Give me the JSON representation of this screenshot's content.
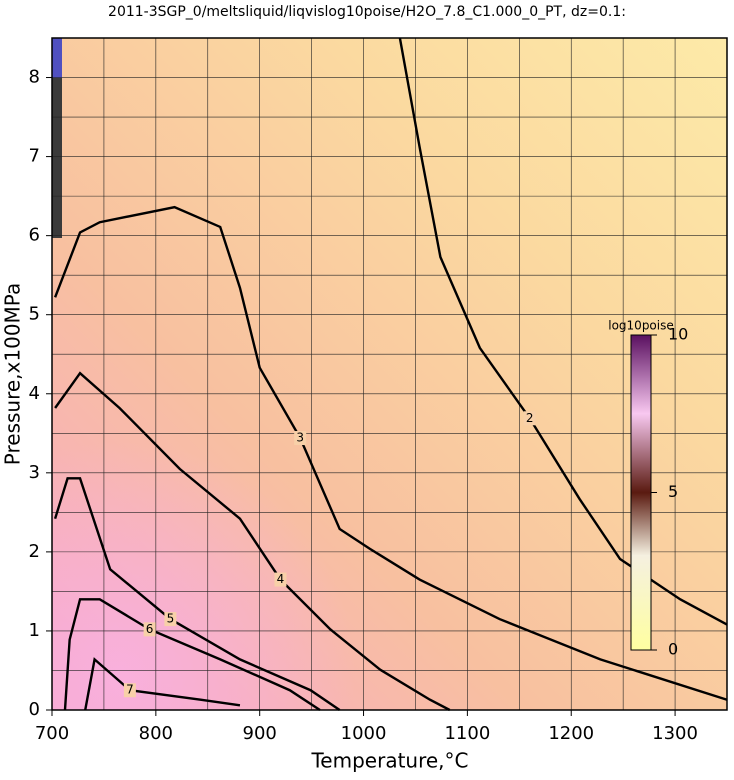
{
  "chart_data": {
    "type": "contour",
    "title": "2011-3SGP_0/meltsliquid/liqvislog10poise/H2O_7.8_C1.000_0_PT, dz=0.1:",
    "xlabel": "Temperature,°C",
    "ylabel": "Pressure,x100MPa",
    "xlim": [
      700,
      1350
    ],
    "ylim": [
      0,
      8.5
    ],
    "xticks": [
      700,
      800,
      900,
      1000,
      1100,
      1200,
      1300
    ],
    "yticks": [
      0,
      1,
      2,
      3,
      4,
      5,
      6,
      7,
      8
    ],
    "xgrid": [
      750,
      850,
      950,
      1050,
      1150,
      1250,
      1350
    ],
    "ygrid": [
      0.5,
      1.5,
      2.5,
      3.5,
      4.5,
      5.5,
      6.5,
      7.5,
      8.5
    ],
    "grid": true,
    "contours": [
      {
        "level": 2,
        "x": [
          1035,
          1054,
          1074,
          1112,
          1160,
          1208,
          1247,
          1305,
          1350
        ],
        "y": [
          8.5,
          7.12,
          5.73,
          4.58,
          3.69,
          2.67,
          1.91,
          1.4,
          1.08
        ]
      },
      {
        "level": 3,
        "x": [
          703,
          727,
          746,
          818,
          862,
          881,
          900,
          939,
          977,
          1006,
          1054,
          1131,
          1228,
          1350
        ],
        "y": [
          5.22,
          6.04,
          6.17,
          6.36,
          6.11,
          5.34,
          4.33,
          3.44,
          2.29,
          2.04,
          1.65,
          1.15,
          0.64,
          0.13
        ]
      },
      {
        "level": 4,
        "x": [
          703,
          727,
          765,
          823,
          881,
          920,
          968,
          1016,
          1064,
          1083
        ],
        "y": [
          3.82,
          4.26,
          3.82,
          3.05,
          2.42,
          1.65,
          1.02,
          0.51,
          0.13,
          0
        ]
      },
      {
        "level": 5,
        "x": [
          703,
          715,
          727,
          756,
          814,
          881,
          949,
          977
        ],
        "y": [
          2.42,
          2.93,
          2.93,
          1.78,
          1.15,
          0.64,
          0.25,
          0
        ]
      },
      {
        "level": 6,
        "x": [
          712.5,
          717,
          727,
          746,
          794,
          862,
          929,
          958
        ],
        "y": [
          0,
          0.89,
          1.4,
          1.4,
          1.02,
          0.64,
          0.25,
          0
        ]
      },
      {
        "level": 7,
        "x": [
          732,
          741,
          775,
          843,
          881
        ],
        "y": [
          0,
          0.64,
          0.25,
          0.13,
          0.06
        ]
      }
    ],
    "colorbar": {
      "label": "log10poise",
      "lim": [
        0,
        10
      ],
      "ticks": [
        0,
        5,
        10
      ]
    }
  }
}
